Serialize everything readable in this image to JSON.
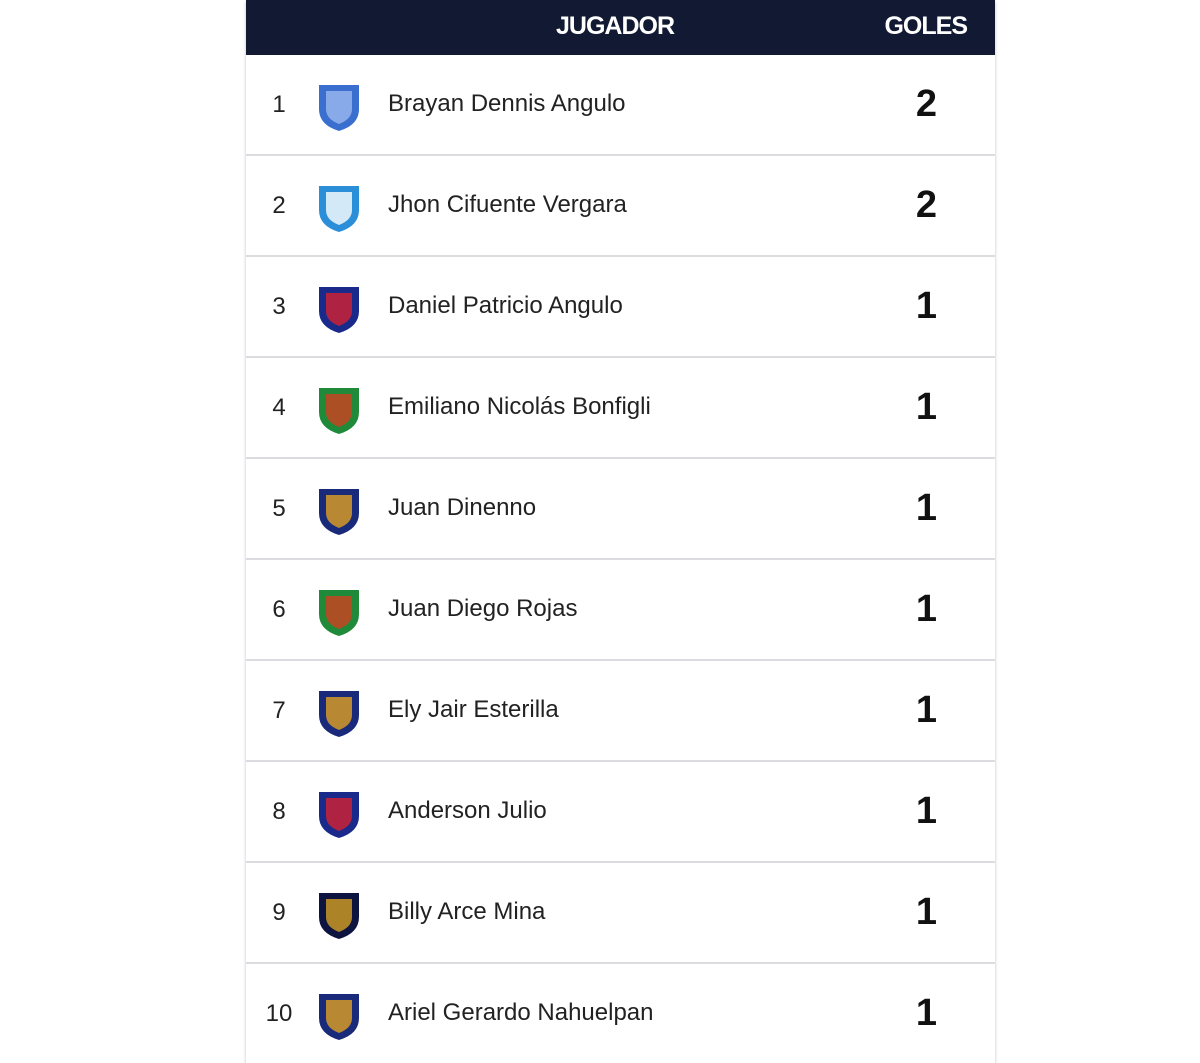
{
  "header": {
    "player": "JUGADOR",
    "goals": "GOLES",
    "bg": "#121a33"
  },
  "rows": [
    {
      "pos": "1",
      "name": "Brayan Dennis Angulo",
      "goals": "2",
      "crest": "emelec-crest",
      "c1": "#3b6fcf",
      "c2": "#9cb9ee"
    },
    {
      "pos": "2",
      "name": "Jhon Cifuente Vergara",
      "goals": "2",
      "crest": "universidad-catolica-crest",
      "c1": "#2a8fd8",
      "c2": "#ffffff"
    },
    {
      "pos": "3",
      "name": "Daniel Patricio Angulo",
      "goals": "1",
      "crest": "el-nacional-crest",
      "c1": "#1a2a8a",
      "c2": "#d42030"
    },
    {
      "pos": "4",
      "name": "Emiliano Nicolás Bonfigli",
      "goals": "1",
      "crest": "mushuc-runa-crest",
      "c1": "#1f8a3a",
      "c2": "#d04020"
    },
    {
      "pos": "5",
      "name": "Juan Dinenno",
      "goals": "1",
      "crest": "barcelona-sc-crest",
      "c1": "#1a2a7a",
      "c2": "#e0a020"
    },
    {
      "pos": "6",
      "name": "Juan Diego Rojas",
      "goals": "1",
      "crest": "mushuc-runa-crest",
      "c1": "#1f8a3a",
      "c2": "#d04020"
    },
    {
      "pos": "7",
      "name": "Ely Jair Esterilla",
      "goals": "1",
      "crest": "barcelona-sc-crest",
      "c1": "#1a2a7a",
      "c2": "#e0a020"
    },
    {
      "pos": "8",
      "name": "Anderson Julio",
      "goals": "1",
      "crest": "ldu-quito-crest",
      "c1": "#1a2a8a",
      "c2": "#d42030"
    },
    {
      "pos": "9",
      "name": "Billy Arce Mina",
      "goals": "1",
      "crest": "independiente-del-valle-crest",
      "c1": "#0e1440",
      "c2": "#d4a020"
    },
    {
      "pos": "10",
      "name": "Ariel Gerardo Nahuelpan",
      "goals": "1",
      "crest": "barcelona-sc-crest",
      "c1": "#1a2a7a",
      "c2": "#e0a020"
    }
  ]
}
